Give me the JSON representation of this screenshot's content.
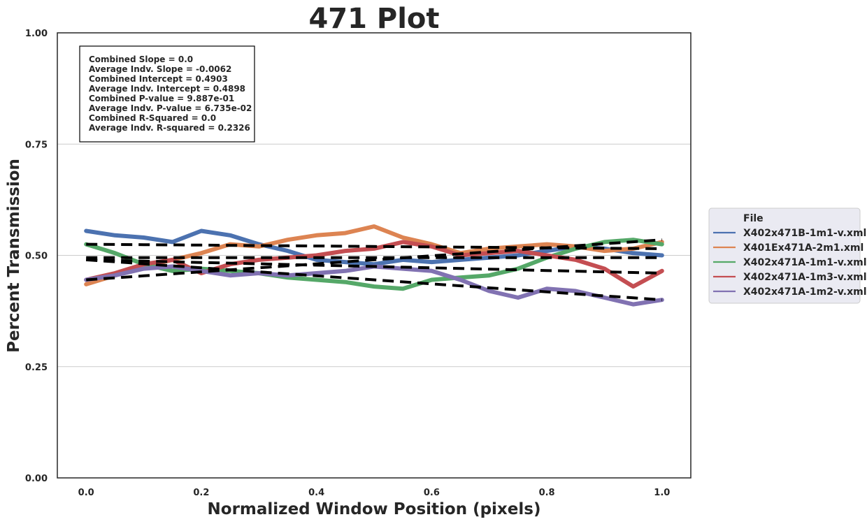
{
  "chart_data": {
    "type": "line",
    "title": "471 Plot",
    "xlabel": "Normalized Window Position (pixels)",
    "ylabel": "Percent Transmission",
    "xlim": [
      -0.05,
      1.05
    ],
    "ylim": [
      0.0,
      1.0
    ],
    "x_ticks": [
      "0.0",
      "0.2",
      "0.4",
      "0.6",
      "0.8",
      "1.0"
    ],
    "y_ticks": [
      "0.00",
      "0.25",
      "0.50",
      "0.75",
      "1.00"
    ],
    "grid": "horizontal",
    "legend_position": "center-right, outside",
    "legend_title": "File",
    "stats_box": [
      "Combined Slope = 0.0",
      "Average Indv. Slope = -0.0062",
      "Combined Intercept = 0.4903",
      "Average Indv. Intercept = 0.4898",
      "Combined P-value = 9.887e-01",
      "Average Indv. P-value = 6.735e-02",
      "Combined R-Squared = 0.0",
      "Average Indv. R-squared = 0.2326"
    ],
    "x": [
      0.0,
      0.05,
      0.1,
      0.15,
      0.2,
      0.25,
      0.3,
      0.35,
      0.4,
      0.45,
      0.5,
      0.55,
      0.6,
      0.65,
      0.7,
      0.75,
      0.8,
      0.85,
      0.9,
      0.95,
      1.0
    ],
    "series": [
      {
        "name": "X402x471B-1m1-v.xml",
        "color": "#4c72b0",
        "values": [
          0.555,
          0.545,
          0.54,
          0.53,
          0.555,
          0.545,
          0.525,
          0.51,
          0.49,
          0.485,
          0.48,
          0.49,
          0.485,
          0.49,
          0.495,
          0.5,
          0.51,
          0.52,
          0.515,
          0.505,
          0.5
        ],
        "fit": [
          0.525,
          0.5245,
          0.524,
          0.5235,
          0.523,
          0.5225,
          0.522,
          0.5215,
          0.521,
          0.5205,
          0.52,
          0.5195,
          0.519,
          0.5185,
          0.518,
          0.5175,
          0.517,
          0.5165,
          0.516,
          0.5155,
          0.515
        ]
      },
      {
        "name": "X401Ex471A-2m1.xml",
        "color": "#dd8452",
        "values": [
          0.435,
          0.455,
          0.475,
          0.49,
          0.505,
          0.525,
          0.52,
          0.535,
          0.545,
          0.55,
          0.565,
          0.54,
          0.525,
          0.505,
          0.515,
          0.52,
          0.525,
          0.52,
          0.51,
          0.515,
          0.53
        ],
        "fit": [
          0.445,
          0.4495,
          0.454,
          0.4585,
          0.463,
          0.4675,
          0.472,
          0.4765,
          0.481,
          0.4855,
          0.49,
          0.4945,
          0.499,
          0.5035,
          0.508,
          0.5125,
          0.517,
          0.5215,
          0.526,
          0.5305,
          0.535
        ]
      },
      {
        "name": "X402x471A-1m1-v.xml",
        "color": "#55a868",
        "values": [
          0.525,
          0.505,
          0.48,
          0.465,
          0.47,
          0.465,
          0.46,
          0.45,
          0.445,
          0.44,
          0.43,
          0.425,
          0.445,
          0.45,
          0.455,
          0.47,
          0.495,
          0.515,
          0.53,
          0.535,
          0.525
        ],
        "fit": [
          0.49,
          0.4885,
          0.487,
          0.4855,
          0.484,
          0.4825,
          0.481,
          0.4795,
          0.478,
          0.4765,
          0.475,
          0.4735,
          0.472,
          0.4705,
          0.469,
          0.4675,
          0.466,
          0.4645,
          0.463,
          0.4615,
          0.46
        ]
      },
      {
        "name": "X402x471A-1m3-v.xml",
        "color": "#c44e52",
        "values": [
          0.445,
          0.46,
          0.48,
          0.49,
          0.46,
          0.48,
          0.49,
          0.495,
          0.5,
          0.51,
          0.515,
          0.53,
          0.52,
          0.5,
          0.505,
          0.51,
          0.5,
          0.49,
          0.47,
          0.43,
          0.465
        ],
        "fit": [
          0.495,
          0.495,
          0.495,
          0.495,
          0.495,
          0.495,
          0.495,
          0.495,
          0.495,
          0.495,
          0.495,
          0.495,
          0.495,
          0.495,
          0.495,
          0.495,
          0.495,
          0.495,
          0.495,
          0.495,
          0.495
        ]
      },
      {
        "name": "X402x471A-1m2-v.xml",
        "color": "#8172b2",
        "values": [
          0.445,
          0.455,
          0.47,
          0.475,
          0.465,
          0.455,
          0.46,
          0.455,
          0.46,
          0.465,
          0.475,
          0.47,
          0.465,
          0.445,
          0.42,
          0.405,
          0.425,
          0.42,
          0.405,
          0.39,
          0.4
        ],
        "fit": [
          0.49,
          0.4855,
          0.481,
          0.4765,
          0.472,
          0.4675,
          0.463,
          0.4585,
          0.454,
          0.4495,
          0.445,
          0.4405,
          0.436,
          0.4315,
          0.427,
          0.4225,
          0.418,
          0.4135,
          0.409,
          0.4045,
          0.4
        ]
      }
    ]
  }
}
